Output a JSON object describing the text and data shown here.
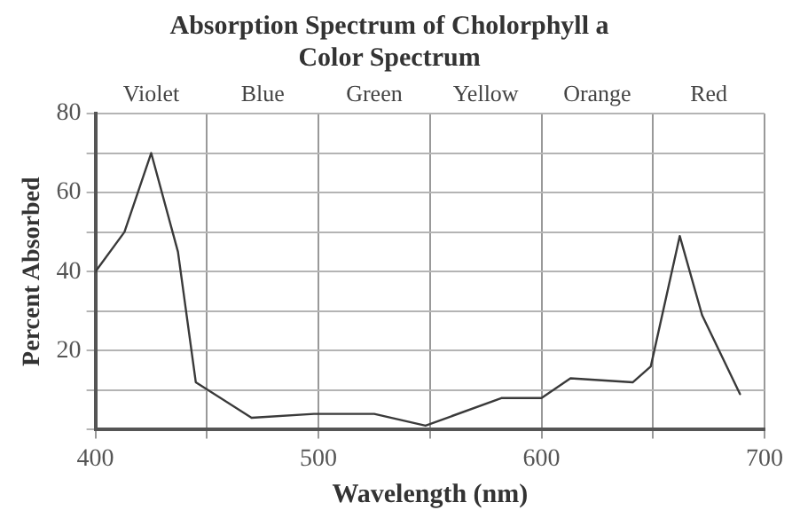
{
  "chart_data": {
    "type": "line",
    "title": "Absorption Spectrum of Cholorphyll a",
    "subtitle": "Color Spectrum",
    "xlabel": "Wavelength (nm)",
    "ylabel": "Percent Absorbed",
    "x": [
      400,
      413,
      425,
      437,
      445,
      470,
      498,
      525,
      548,
      582,
      600,
      613,
      641,
      649,
      662,
      672,
      689
    ],
    "series": [
      {
        "color": "#3a3a3a",
        "values": [
          40,
          50,
          70,
          45,
          12,
          3,
          4,
          4,
          1,
          8,
          8,
          13,
          12,
          16,
          49,
          29,
          9
        ]
      }
    ],
    "xlim": [
      400,
      700
    ],
    "xticks": [
      400,
      {
        "value": 450,
        "label": null
      },
      500,
      {
        "value": 550,
        "label": null
      },
      600,
      {
        "value": 650,
        "label": null
      },
      700
    ],
    "ylim": [
      0,
      80
    ],
    "yticks": [
      {
        "value": 0,
        "label": null
      },
      {
        "value": 10,
        "label": null
      },
      20,
      {
        "value": 30,
        "label": null
      },
      40,
      {
        "value": 50,
        "label": null
      },
      60,
      {
        "value": 70,
        "label": null
      },
      80
    ],
    "annotations": [
      "Violet",
      "Blue",
      "Green",
      "Yellow",
      "Orange",
      "Red"
    ],
    "grid": true,
    "legend": false,
    "marker": "none",
    "line_style": "solid"
  }
}
